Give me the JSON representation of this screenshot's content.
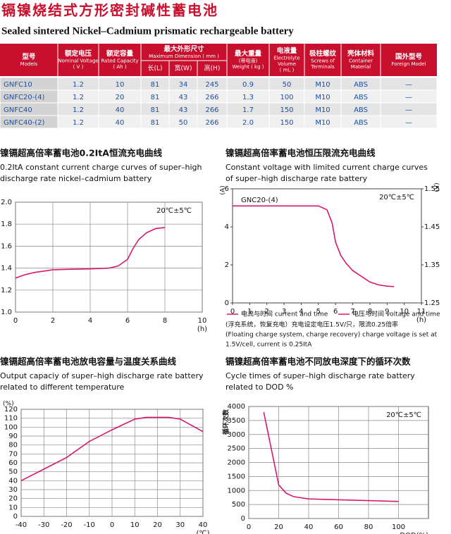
{
  "header": {
    "title": "镉镍烧结式方形密封碱性蓄电池",
    "subtitle": "Sealed sintered Nickel–Cadmium prismatic rechargeable battery"
  },
  "table": {
    "columns": [
      {
        "lines": [
          "型号",
          "Models"
        ]
      },
      {
        "lines": [
          "额定电压",
          "Nominal Voltage",
          "( V )"
        ]
      },
      {
        "lines": [
          "额定容量",
          "Rated Capacity",
          "( Ah )"
        ]
      },
      {
        "lines": [
          "最大外形尺寸",
          "Maximum Dimension ( mm )"
        ],
        "sub": [
          "长(L)",
          "宽(W)",
          "高(H)"
        ]
      },
      {
        "lines": [
          "最大重量",
          "(带电液)",
          "Weight ( kg )"
        ]
      },
      {
        "lines": [
          "电液量",
          "Electrolyte",
          "Volume",
          "( mL )"
        ]
      },
      {
        "lines": [
          "极柱螺纹",
          "Screws of",
          "Terminals"
        ]
      },
      {
        "lines": [
          "壳体材料",
          "Container",
          "Material"
        ]
      },
      {
        "lines": [
          "国外型号",
          "Foreign Model"
        ]
      }
    ],
    "rows": [
      [
        "GNFC10",
        "1.2",
        "10",
        "81",
        "34",
        "245",
        "0.9",
        "50",
        "M10",
        "ABS",
        "—"
      ],
      [
        "GNFC20-(4)",
        "1.2",
        "20",
        "81",
        "43",
        "266",
        "1.3",
        "100",
        "M10",
        "ABS",
        "—"
      ],
      [
        "GNFC40",
        "1.2",
        "40",
        "81",
        "43",
        "266",
        "1.7",
        "150",
        "M10",
        "ABS",
        "—"
      ],
      [
        "GNFC40-(2)",
        "1.2",
        "40",
        "81",
        "50",
        "266",
        "2.0",
        "150",
        "M10",
        "ABS",
        "—"
      ]
    ]
  },
  "chart_data": [
    {
      "type": "line",
      "title": "镍镉超高倍率蓄电池0.2ItA恒流充电曲线",
      "subtitle": [
        "0.2ItA constant current charge curves of super–high",
        "discharge rate nickel–cadmium battery"
      ],
      "annotation": "20℃±5℃",
      "x_unit": "(h)",
      "x": [
        0,
        0.5,
        1,
        2,
        3,
        4,
        5,
        5.5,
        6,
        6.3,
        6.6,
        7,
        7.5,
        8
      ],
      "series": [
        {
          "color": "#d6186e",
          "values": [
            1.31,
            1.34,
            1.36,
            1.385,
            1.39,
            1.393,
            1.4,
            1.42,
            1.48,
            1.58,
            1.66,
            1.72,
            1.76,
            1.77
          ]
        }
      ],
      "xlim": [
        0,
        10
      ],
      "xticks": [
        0,
        2,
        4,
        6,
        8,
        10
      ],
      "ylim": [
        1,
        2
      ],
      "yticks": [
        {
          "value": 1,
          "label": "1.0"
        },
        1.2,
        1.4,
        1.6,
        1.8,
        {
          "value": 2,
          "label": "2.0"
        }
      ],
      "grid": true
    },
    {
      "type": "line",
      "title": "镍镉超高倍率蓄电池恒压限流充电曲线",
      "subtitle": [
        "Constant voltage with limited current charge curves",
        "of super–high discharge rate battery"
      ],
      "annotation": "20℃±5℃",
      "series_label": "GNC20-(4)",
      "x_unit": "(h)",
      "y_unit": "(A)",
      "y2_unit": "(V)",
      "legend": [
        "电流与时间  current and time",
        "电压与时间  voltage and time"
      ],
      "note": [
        "(浮充系统，恢复充电）充电设定电压1.5V/只，限流0.25倍率",
        "(Floating charge system, charge recovery) charge voltage is set at",
        "1.5V/cell, current is 0.25ItA"
      ],
      "x": [
        0,
        1,
        2,
        3,
        4,
        5,
        5.5,
        5.8,
        6,
        6.3,
        6.6,
        7,
        7.5,
        8,
        8.5,
        9,
        9.4
      ],
      "series": [
        {
          "color": "#d6186e",
          "values": [
            5.1,
            5.1,
            5.1,
            5.1,
            5.1,
            5.1,
            4.9,
            4.2,
            3.2,
            2.5,
            2.1,
            1.7,
            1.4,
            1.1,
            0.95,
            0.88,
            0.86
          ]
        }
      ],
      "xlim": [
        0,
        11
      ],
      "xticks": [
        0,
        1,
        2,
        3,
        4,
        5,
        6,
        7,
        8,
        9,
        10,
        11
      ],
      "ylim": [
        0,
        6
      ],
      "yticks": [
        0,
        2,
        4,
        6
      ],
      "y2lim": [
        1.25,
        1.55
      ],
      "y2ticks": [
        1.25,
        1.35,
        1.45,
        1.55
      ],
      "grid": false
    },
    {
      "type": "line",
      "title": "镍镉超高倍率蓄电池放电容量与温度关系曲线",
      "subtitle": [
        "Output capaciy of super–high discharge rate battery",
        "related to different temperature"
      ],
      "x_unit": "(℃)",
      "y_unit": "(%)",
      "x": [
        -40,
        -30,
        -20,
        -10,
        0,
        5,
        10,
        15,
        20,
        25,
        30,
        35,
        40
      ],
      "series": [
        {
          "color": "#d6186e",
          "values": [
            40,
            53,
            66,
            84,
            97,
            103,
            109,
            111,
            111,
            111,
            109,
            102,
            95
          ]
        }
      ],
      "xlim": [
        -40,
        40
      ],
      "xticks": [
        -40,
        -30,
        -20,
        -10,
        0,
        10,
        20,
        30,
        40
      ],
      "ylim": [
        0,
        120
      ],
      "yticks": [
        0,
        10,
        20,
        30,
        40,
        50,
        60,
        70,
        80,
        90,
        100,
        110,
        120
      ],
      "grid": true
    },
    {
      "type": "line",
      "title": "镉镍超高倍率蓄电池不同放电深度下的循环次数",
      "subtitle": [
        "Cycle times of super–high discharge rate battery",
        "related to DOD %"
      ],
      "annotation": "20℃±5℃",
      "x_unit": "DOD(%)",
      "y_unit": "循环次数",
      "x": [
        10,
        15,
        20,
        25,
        30,
        40,
        60,
        80,
        100
      ],
      "series": [
        {
          "color": "#d6186e",
          "values": [
            3800,
            2500,
            1200,
            900,
            780,
            700,
            670,
            640,
            610
          ]
        }
      ],
      "xlim": [
        0,
        120
      ],
      "xticks": [
        0,
        20,
        40,
        60,
        80,
        100
      ],
      "ylim": [
        0,
        4000
      ],
      "yticks": [
        0,
        500,
        1000,
        1500,
        2000,
        2500,
        3000,
        3500,
        4000
      ],
      "grid": true
    }
  ]
}
